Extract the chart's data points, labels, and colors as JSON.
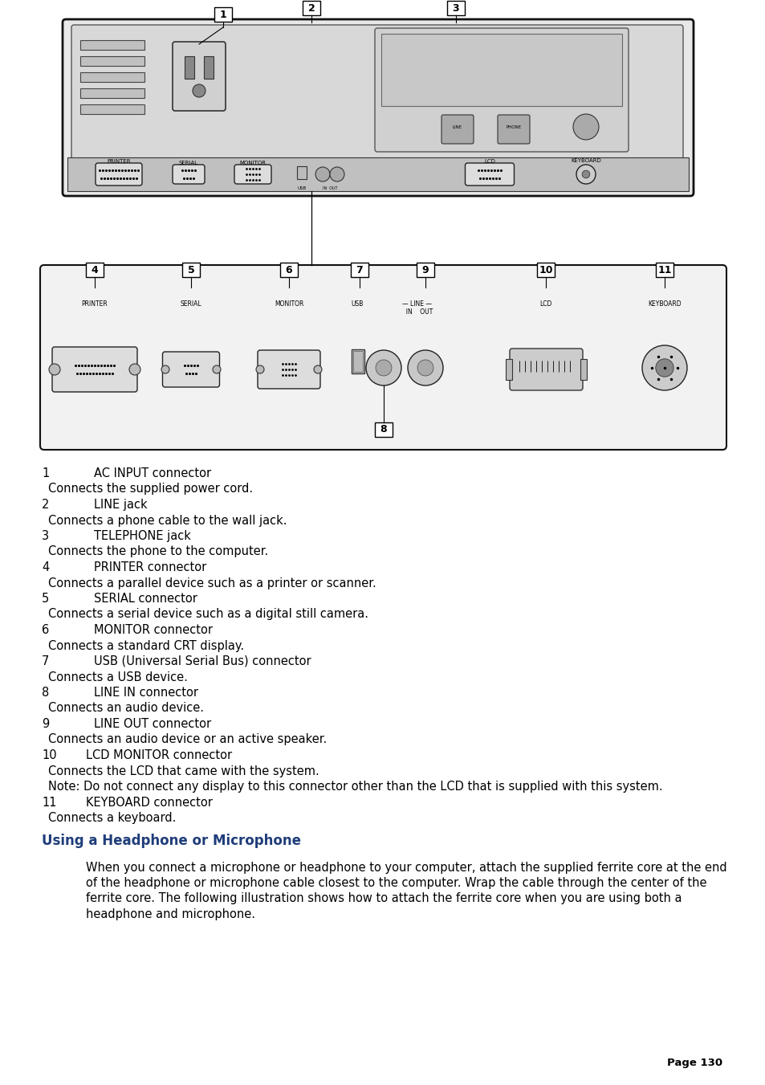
{
  "bg_color": "#ffffff",
  "text_color": "#000000",
  "blue_color": "#1f3d7a",
  "page_number": "Page 130",
  "title_heading": "Using a Headphone or Microphone",
  "body_lines": [
    {
      "num": "1",
      "tab": true,
      "label": "AC INPUT connector",
      "desc": "Connects the supplied power cord."
    },
    {
      "num": "2",
      "tab": true,
      "label": "LINE jack",
      "desc": "Connects a phone cable to the wall jack."
    },
    {
      "num": "3",
      "tab": true,
      "label": "TELEPHONE jack",
      "desc": "Connects the phone to the computer."
    },
    {
      "num": "4",
      "tab": true,
      "label": "PRINTER connector",
      "desc": "Connects a parallel device such as a printer or scanner."
    },
    {
      "num": "5",
      "tab": true,
      "label": "SERIAL connector",
      "desc": "Connects a serial device such as a digital still camera."
    },
    {
      "num": "6",
      "tab": true,
      "label": "MONITOR connector",
      "desc": "Connects a standard CRT display."
    },
    {
      "num": "7",
      "tab": true,
      "label": "USB (Universal Serial Bus) connector",
      "desc": "Connects a USB device."
    },
    {
      "num": "8",
      "tab": true,
      "label": "LINE IN connector",
      "desc": "Connects an audio device."
    },
    {
      "num": "9",
      "tab": true,
      "label": "LINE OUT connector",
      "desc": "Connects an audio device or an active speaker."
    },
    {
      "num": "10",
      "tab": false,
      "label": "LCD MONITOR connector",
      "desc": "Connects the LCD that came with the system."
    },
    {
      "num": "",
      "tab": false,
      "label": "",
      "desc": "Note: Do not connect any display to this connector other than the LCD that is supplied with this system."
    },
    {
      "num": "11",
      "tab": false,
      "label": "KEYBOARD connector",
      "desc": "Connects a keyboard."
    }
  ],
  "paragraph_text": "When you connect a microphone or headphone to your computer, attach the supplied ferrite core at the end of the headphone or microphone cable closest to the computer. Wrap the cable through the center of the ferrite core. The following illustration shows how to attach the ferrite core when you are using both a headphone and microphone.",
  "fig_width": 9.54,
  "fig_height": 13.51
}
